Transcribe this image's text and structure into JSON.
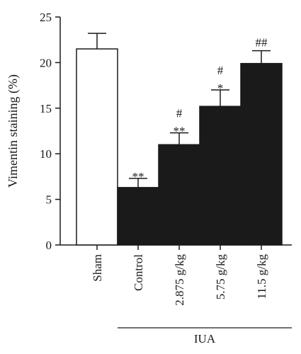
{
  "chart_data": {
    "type": "bar",
    "categories": [
      "Sham",
      "Control",
      "2.875 g/kg",
      "5.75 g/kg",
      "11.5 g/kg"
    ],
    "values": [
      21.5,
      6.3,
      11.0,
      15.2,
      19.9
    ],
    "errors": [
      1.7,
      1.0,
      1.3,
      1.8,
      1.4
    ],
    "annotations_bottom": [
      "",
      "**",
      "**",
      "*",
      ""
    ],
    "annotations_top": [
      "",
      "",
      "#",
      "#",
      "##"
    ],
    "bar_fill": [
      "#ffffff",
      "#1a1a1a",
      "#1a1a1a",
      "#1a1a1a",
      "#1a1a1a"
    ],
    "bar_stroke": "#1a1a1a",
    "ylabel": "Vimentin staining (%)",
    "ylim": [
      0,
      25
    ],
    "yticks": [
      "0",
      "5",
      "10",
      "15",
      "20",
      "25"
    ],
    "group_label": "IUA",
    "group_span": [
      "Control",
      "11.5 g/kg"
    ],
    "grid": false
  }
}
